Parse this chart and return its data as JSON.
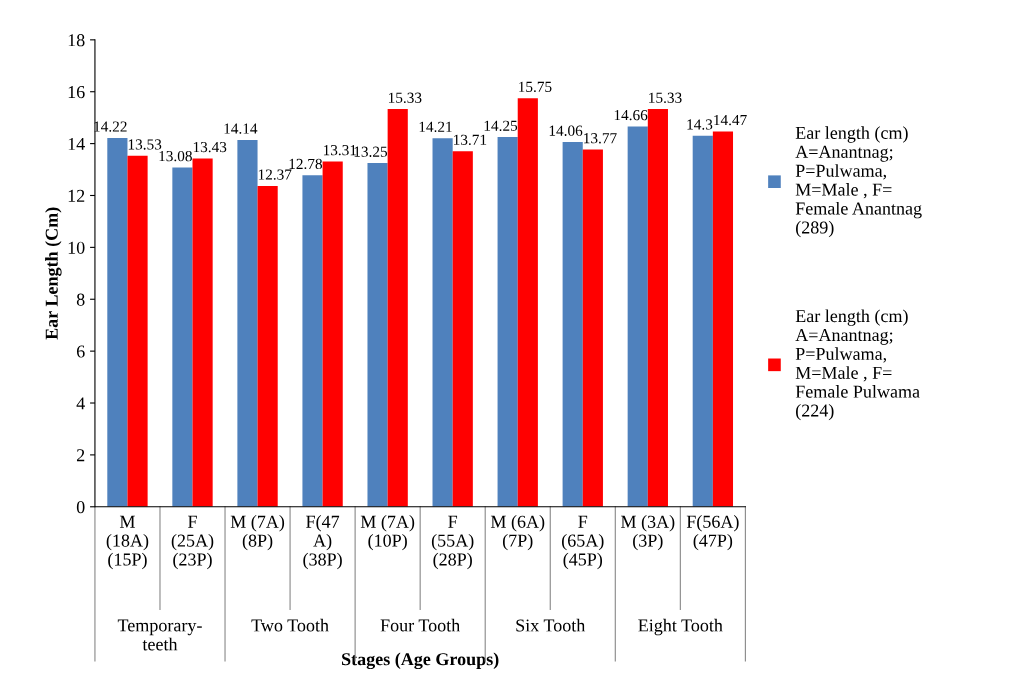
{
  "chart_data": {
    "type": "bar",
    "xlabel": "Stages (Age Groups)",
    "ylabel": "Ear Length (Cm)",
    "categories": [
      "M\n(18A)\n(15P)",
      "F\n(25A)\n(23P)",
      "M (7A)\n(8P)",
      "F(47\nA)\n(38P)",
      "M (7A)\n(10P)",
      "F\n(55A)\n(28P)",
      "M (6A)\n(7P)",
      "F\n(65A)\n(45P)",
      "M (3A)\n(3P)",
      "F(56A)\n(47P)"
    ],
    "annotations": [
      "Temporary-\nteeth",
      "Two Tooth",
      "Four Tooth",
      "Six Tooth",
      "Eight Tooth"
    ],
    "series": [
      {
        "name": "Ear length (cm)\nA=Anantnag;\nP=Pulwama,\nM=Male , F=\nFemale Anantnag\n(289)",
        "color": "#4f81bd",
        "values": [
          14.22,
          13.08,
          14.14,
          12.78,
          13.25,
          14.21,
          14.25,
          14.06,
          14.66,
          14.3
        ]
      },
      {
        "name": "Ear length (cm)\nA=Anantnag;\nP=Pulwama,\nM=Male , F=\nFemale Pulwama\n(224)",
        "color": "#ff0000",
        "values": [
          13.53,
          13.43,
          12.37,
          13.31,
          15.33,
          13.71,
          15.75,
          13.77,
          15.33,
          14.47
        ]
      }
    ],
    "ylim": [
      0,
      18
    ],
    "yticks": [
      0,
      2,
      4,
      6,
      8,
      10,
      12,
      14,
      16,
      18
    ],
    "data_labels": true,
    "legend": "right",
    "grid": false
  }
}
